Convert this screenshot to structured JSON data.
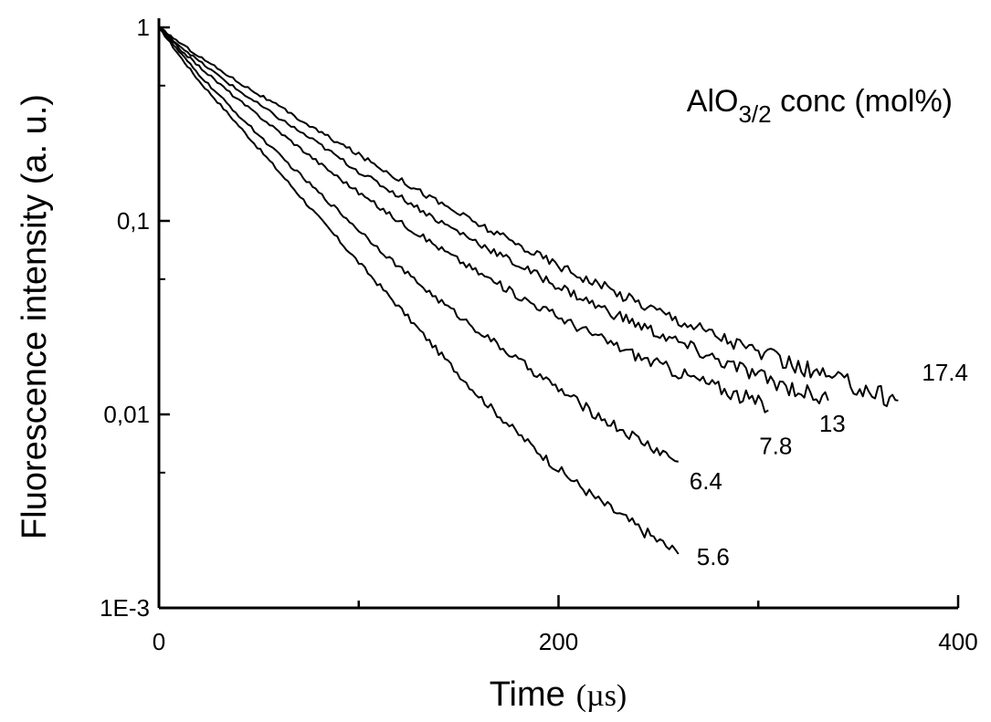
{
  "chart_data": {
    "type": "line",
    "title": "",
    "xlabel": "Time",
    "xunit": "(µs)",
    "ylabel": "Fluorescence intensity (a. u.)",
    "legend_title": {
      "main": "AlO",
      "subscript": "3/2",
      "rest": " conc (mol%)"
    },
    "x_scale": "linear",
    "y_scale": "log",
    "xlim": [
      0,
      400
    ],
    "ylim": [
      0.001,
      1
    ],
    "x_ticks": [
      {
        "value": 0,
        "label": "0"
      },
      {
        "value": 200,
        "label": "200"
      },
      {
        "value": 400,
        "label": "400"
      }
    ],
    "y_ticks": [
      {
        "value": 1,
        "label": "1"
      },
      {
        "value": 0.1,
        "label": "0,1"
      },
      {
        "value": 0.01,
        "label": "0,01"
      },
      {
        "value": 0.001,
        "label": "1E-3"
      }
    ],
    "grid": false,
    "color": "#000000",
    "series": [
      {
        "name": "5.6",
        "x": [
          0,
          10,
          20,
          40,
          60,
          80,
          100,
          120,
          140,
          160,
          180,
          200,
          220,
          240,
          260
        ],
        "y": [
          1.0,
          0.72,
          0.53,
          0.31,
          0.18,
          0.104,
          0.061,
          0.036,
          0.021,
          0.0125,
          0.0079,
          0.0052,
          0.0036,
          0.0026,
          0.0019
        ]
      },
      {
        "name": "6.4",
        "x": [
          0,
          10,
          20,
          40,
          60,
          80,
          100,
          120,
          140,
          160,
          180,
          200,
          220,
          240,
          260
        ],
        "y": [
          1.0,
          0.75,
          0.57,
          0.35,
          0.22,
          0.14,
          0.09,
          0.058,
          0.039,
          0.027,
          0.019,
          0.0135,
          0.0098,
          0.0074,
          0.0057
        ]
      },
      {
        "name": "7.8",
        "x": [
          0,
          10,
          20,
          40,
          60,
          80,
          100,
          120,
          140,
          160,
          180,
          200,
          220,
          240,
          260,
          280,
          300,
          305
        ],
        "y": [
          1.0,
          0.78,
          0.63,
          0.42,
          0.29,
          0.2,
          0.14,
          0.1,
          0.073,
          0.054,
          0.041,
          0.032,
          0.025,
          0.02,
          0.0165,
          0.0138,
          0.0115,
          0.0105
        ]
      },
      {
        "name": "13",
        "x": [
          0,
          10,
          20,
          40,
          60,
          80,
          100,
          120,
          140,
          160,
          180,
          200,
          220,
          240,
          260,
          280,
          300,
          320,
          335
        ],
        "y": [
          1.0,
          0.81,
          0.67,
          0.47,
          0.34,
          0.25,
          0.18,
          0.135,
          0.1,
          0.077,
          0.059,
          0.046,
          0.036,
          0.029,
          0.0235,
          0.019,
          0.0158,
          0.0133,
          0.0118
        ]
      },
      {
        "name": "17.4",
        "x": [
          0,
          10,
          20,
          40,
          60,
          80,
          100,
          120,
          140,
          160,
          180,
          200,
          220,
          240,
          260,
          280,
          300,
          320,
          340,
          360,
          370
        ],
        "y": [
          1.0,
          0.84,
          0.71,
          0.52,
          0.39,
          0.29,
          0.22,
          0.165,
          0.125,
          0.096,
          0.075,
          0.059,
          0.047,
          0.038,
          0.031,
          0.0255,
          0.021,
          0.0175,
          0.015,
          0.0128,
          0.0118
        ]
      }
    ]
  }
}
